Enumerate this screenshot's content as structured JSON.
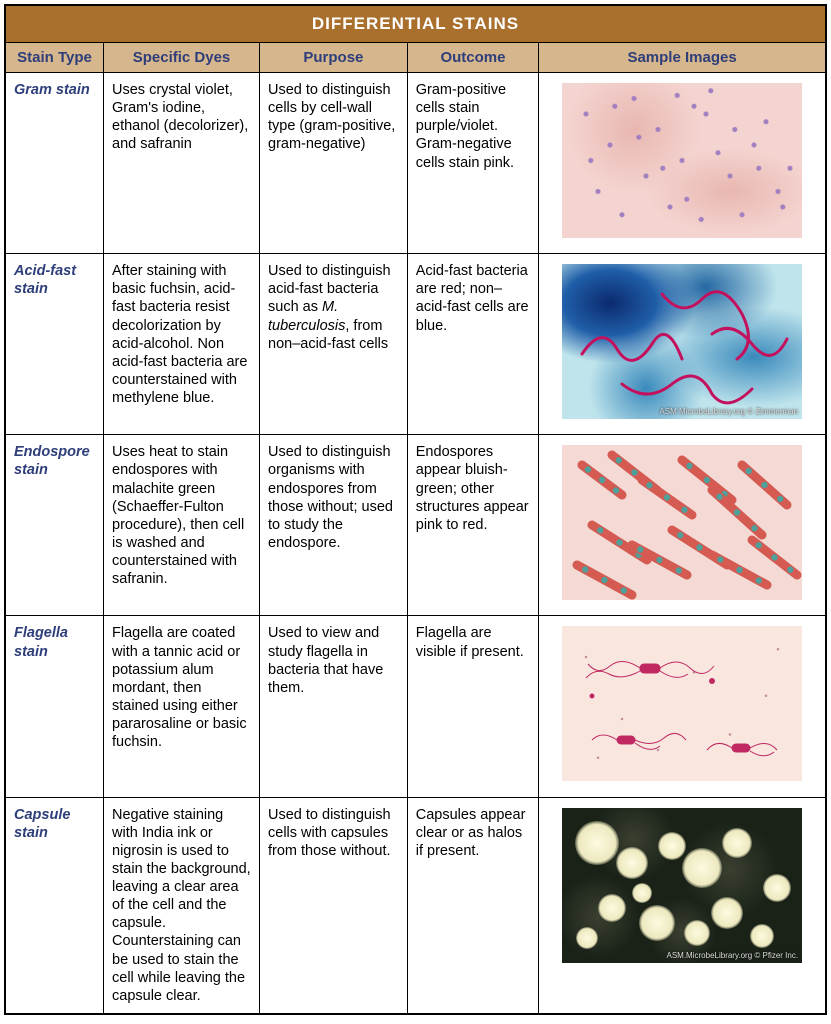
{
  "title": "DIFFERENTIAL STAINS",
  "colors": {
    "title_bg": "#a96f2c",
    "header_bg": "#d6b68c",
    "header_text": "#2e3e7a",
    "stain_type_text": "#2e3e7a",
    "border": "#000000",
    "body_text": "#222222"
  },
  "columns": [
    {
      "label": "Stain Type",
      "width": "12%"
    },
    {
      "label": "Specific Dyes",
      "width": "19%"
    },
    {
      "label": "Purpose",
      "width": "18%"
    },
    {
      "label": "Outcome",
      "width": "16%"
    },
    {
      "label": "Sample Images",
      "width": "35%"
    }
  ],
  "rows": [
    {
      "stain_type": "Gram stain",
      "dyes": "Uses crystal violet, Gram's iodine, ethanol (decolorizer), and safranin",
      "purpose": "Used to distinguish cells by cell-wall type (gram-positive, gram-negative)",
      "outcome": "Gram-positive cells stain purple/violet. Gram-negative cells stain pink.",
      "image": {
        "class": "img-gram",
        "credit": ""
      }
    },
    {
      "stain_type": "Acid-fast stain",
      "dyes": "After staining with basic fuchsin, acid-fast bacteria resist decolorization by acid-alcohol. Non acid-fast bacteria are counterstained with methylene blue.",
      "purpose_html": "Used to distinguish acid-fast bacteria such as <span class=\"em\">M. tuberculosis</span>, from non–acid-fast cells",
      "outcome": "Acid-fast bacteria are red; non–acid-fast cells are blue.",
      "image": {
        "class": "img-acidfast",
        "credit": "ASM MicrobeLibrary.org © Zimmerman"
      }
    },
    {
      "stain_type": "Endospore stain",
      "dyes": "Uses heat to stain endospores with malachite green (Schaeffer-Fulton procedure), then cell is washed and counterstained with safranin.",
      "purpose": "Used to distinguish organisms with endospores from those without; used to study the endospore.",
      "outcome": "Endospores appear bluish-green; other structures appear pink to red.",
      "image": {
        "class": "img-endospore",
        "credit": ""
      }
    },
    {
      "stain_type": "Flagella stain",
      "dyes": "Flagella are coated with a tannic acid or potassium alum mordant, then stained using either pararosaline or basic fuchsin.",
      "purpose": "Used to view and study flagella in bacteria that have them.",
      "outcome": "Flagella are visible if present.",
      "image": {
        "class": "img-flagella",
        "credit": ""
      }
    },
    {
      "stain_type": "Capsule stain",
      "dyes": "Negative staining with India ink or nigrosin is used to stain the background, leaving a clear area of the cell and the capsule. Counterstaining can be used to stain the cell while leaving the capsule clear.",
      "purpose": "Used to distinguish cells with capsules from those without.",
      "outcome": "Capsules appear clear or as halos if present.",
      "image": {
        "class": "img-capsule",
        "credit": "ASM.MicrobeLibrary.org © Pfizer Inc."
      }
    }
  ],
  "image_style": {
    "gram": {
      "bg": "#f4d4d0",
      "dot_color": "#a17fc0"
    },
    "acidfast": {
      "bg": "#bfe4ec",
      "blob": "#1f5ea8",
      "filament": "#c3115d"
    },
    "endospore": {
      "bg": "#f4d9d4",
      "rod": "#d45a52",
      "spore": "#4fa09a"
    },
    "flagella": {
      "bg": "#f9e6de",
      "cell": "#c02862",
      "flagellum": "#c02862"
    },
    "capsule": {
      "bg": "#1a2218",
      "halo": "#fdfbe0"
    }
  }
}
